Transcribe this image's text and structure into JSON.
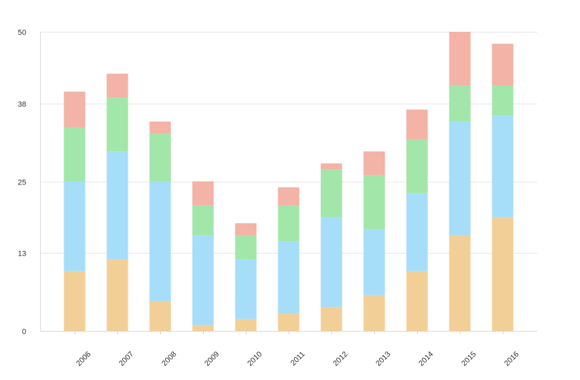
{
  "chart_data": {
    "type": "bar",
    "stacked": true,
    "categories": [
      "2006",
      "2007",
      "2008",
      "2009",
      "2010",
      "2011",
      "2012",
      "2013",
      "2014",
      "2015",
      "2016"
    ],
    "series": [
      {
        "values": [
          10,
          12,
          5,
          1,
          2,
          3,
          4,
          6,
          10,
          16,
          19
        ],
        "color": "#f3cf98"
      },
      {
        "values": [
          15,
          18,
          20,
          15,
          10,
          12,
          15,
          11,
          13,
          19,
          17
        ],
        "color": "#a6defa"
      },
      {
        "values": [
          9,
          9,
          8,
          5,
          4,
          6,
          8,
          9,
          9,
          6,
          5
        ],
        "color": "#a3e6aa"
      },
      {
        "values": [
          6,
          4,
          2,
          4,
          2,
          3,
          1,
          4,
          5,
          9,
          7
        ],
        "color": "#f3b3a7"
      }
    ],
    "ylim": [
      0,
      50
    ],
    "yticks": [
      "0",
      "13",
      "25",
      "38",
      "50"
    ],
    "grid": true,
    "legend": "none",
    "title": "",
    "xlabel": "",
    "ylabel": ""
  }
}
